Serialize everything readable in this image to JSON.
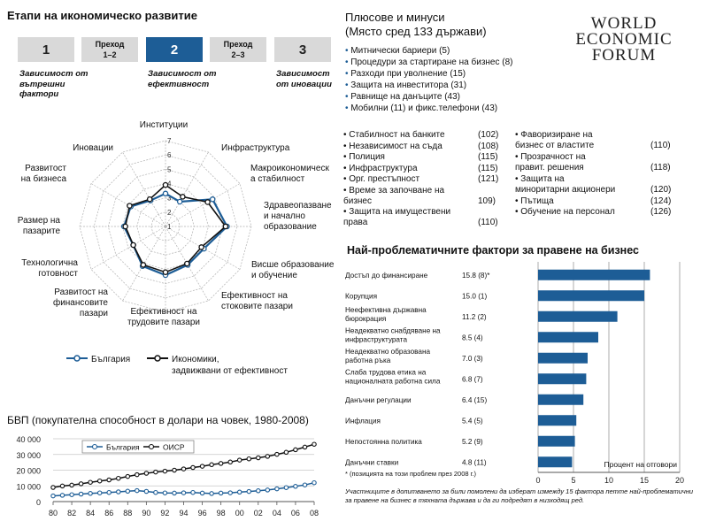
{
  "stages": {
    "title": "Етапи на икономическо развитие",
    "boxes": [
      {
        "label": "1",
        "active": false,
        "caption": "Зависимост от вътрешни фактори"
      },
      {
        "label": "Преход 1–2",
        "transition": true
      },
      {
        "label": "2",
        "active": true,
        "caption": "Зависимост от ефективност"
      },
      {
        "label": "Преход 2–3",
        "transition": true
      },
      {
        "label": "3",
        "active": false,
        "caption": "Зависимост от иновации"
      }
    ]
  },
  "pros_cons": {
    "title": "Плюсове и минуси",
    "subtitle": "(Място сред 133 държави)",
    "items": [
      "Митнически бариери (5)",
      "Процедури за стартиране на бизнес (8)",
      "Разходи при уволнение (15)",
      "Защита на инвеститора (31)",
      "Равнище на данъците (43)",
      "Мобилни (11) и фикс.телефони (43)"
    ]
  },
  "logo": {
    "lines": [
      "WORLD",
      "ECONOMIC",
      "FORUM"
    ]
  },
  "minus_items_left": [
    {
      "text": "Стабилност на банките",
      "rank": "(102)"
    },
    {
      "text": "Независимост на съда",
      "rank": "(108)"
    },
    {
      "text": "Полиция",
      "rank": "(115)"
    },
    {
      "text": "Инфраструктура",
      "rank": "(115)"
    },
    {
      "text": "Орг. престъпност",
      "rank": "(121)"
    },
    {
      "text": "Време за започване на бизнес",
      "rank": "109)"
    },
    {
      "text": "Защита на имуществени права",
      "rank": "(110)"
    }
  ],
  "minus_items_right": [
    {
      "text": "Фаворизиране на бизнес от властите",
      "rank": "(110)"
    },
    {
      "text": "Прозрачност на правит. решения",
      "rank": "(118)"
    },
    {
      "text": "Защита на миноритарни акционери",
      "rank": "(120)"
    },
    {
      "text": "Пътища",
      "rank": "(124)"
    },
    {
      "text": "Обучение на персонал",
      "rank": "(126)"
    }
  ],
  "colors": {
    "bulgaria": "#1d5d96",
    "benchmark": "#111111",
    "grid": "#b0b0b0",
    "bar": "#1d5d96"
  },
  "chart_data": [
    {
      "type": "radar",
      "axes": [
        "Институции",
        "Инфраструктура",
        "Макроикономическа стабилност",
        "Здравеопазване и начално образование",
        "Висше образование и обучение",
        "Ефективност на стоковите пазари",
        "Ефективност на трудовите пазари",
        "Развитост на финансовите пазари",
        "Технологична готовност",
        "Размер на пазарите",
        "Развитост на бизнеса",
        "Иновации"
      ],
      "ticks": [
        "1",
        "2",
        "3",
        "4",
        "5",
        "6",
        "7"
      ],
      "rlim": [
        1,
        7
      ],
      "series": [
        {
          "name": "България",
          "values": [
            3.3,
            3.0,
            4.8,
            5.3,
            4.1,
            4.1,
            4.4,
            4.2,
            3.6,
            3.9,
            3.8,
            3.1
          ]
        },
        {
          "name": "Икономики, задвижвани от ефективност",
          "values": [
            3.9,
            3.4,
            4.4,
            5.2,
            3.9,
            4.0,
            4.2,
            4.1,
            3.6,
            3.8,
            3.9,
            3.2
          ]
        }
      ]
    },
    {
      "type": "line",
      "title": "БВП (покупателна способност в долари на човек, 1980-2008)",
      "x": [
        1980,
        1981,
        1982,
        1983,
        1984,
        1985,
        1986,
        1987,
        1988,
        1989,
        1990,
        1991,
        1992,
        1993,
        1994,
        1995,
        1996,
        1997,
        1998,
        1999,
        2000,
        2001,
        2002,
        2003,
        2004,
        2005,
        2006,
        2007,
        2008
      ],
      "xticks": [
        "80",
        "82",
        "84",
        "86",
        "88",
        "90",
        "92",
        "94",
        "96",
        "98",
        "00",
        "02",
        "04",
        "06",
        "08"
      ],
      "yticks": [
        "0",
        "10 000",
        "20 000",
        "30 000",
        "40 000"
      ],
      "ylim": [
        0,
        40000
      ],
      "series": [
        {
          "name": "България",
          "values": [
            3600,
            4000,
            4400,
            4800,
            5200,
            5500,
            5800,
            6200,
            6600,
            7000,
            6500,
            5800,
            5500,
            5400,
            5600,
            5800,
            5400,
            5100,
            5400,
            5600,
            6000,
            6400,
            6900,
            7400,
            8100,
            8900,
            9700,
            10600,
            12000
          ]
        },
        {
          "name": "ОИСР",
          "values": [
            9000,
            9900,
            10500,
            11300,
            12300,
            13100,
            13800,
            14800,
            16000,
            17100,
            18000,
            18800,
            19400,
            20000,
            20800,
            21700,
            22500,
            23500,
            24300,
            25200,
            26400,
            27200,
            27900,
            28800,
            30100,
            31400,
            33000,
            34700,
            36500
          ]
        }
      ]
    },
    {
      "type": "bar",
      "orientation": "horizontal",
      "title": "Най-проблематичните фактори за правене на бизнес",
      "categories": [
        "Достъп до финансиране",
        "Корупция",
        "Неефективна държавна бюрокрация",
        "Неадекватно снабдяване на инфраструктурата",
        "Неадекватно образована работна ръка",
        "Слаба трудова етика на националната работна сила",
        "Данъчни регулации",
        "Инфлация",
        "Непостоянна политика",
        "Данъчни ставки"
      ],
      "value_labels": [
        "15.8 (8)*",
        "15.0 (1)",
        "11.2 (2)",
        "8.5 (4)",
        "7.0 (3)",
        "6.8 (7)",
        "6.4 (15)",
        "5.4 (5)",
        "5.2 (9)",
        "4.8 (11)"
      ],
      "values": [
        15.8,
        15.0,
        11.2,
        8.5,
        7.0,
        6.8,
        6.4,
        5.4,
        5.2,
        4.8
      ],
      "xlim": [
        0,
        20
      ],
      "xticks": [
        "0",
        "5",
        "10",
        "15",
        "20"
      ],
      "xlabel": "Процент на отговори",
      "footnote": "* (позицията на този проблем през 2008 г.)",
      "note": "Участниците в допитването за били помолени да изберат измежду 15 фактора петте най-проблематични за правене на бизнес в тяхната държава и да ги подредят в низходящ ред."
    }
  ]
}
